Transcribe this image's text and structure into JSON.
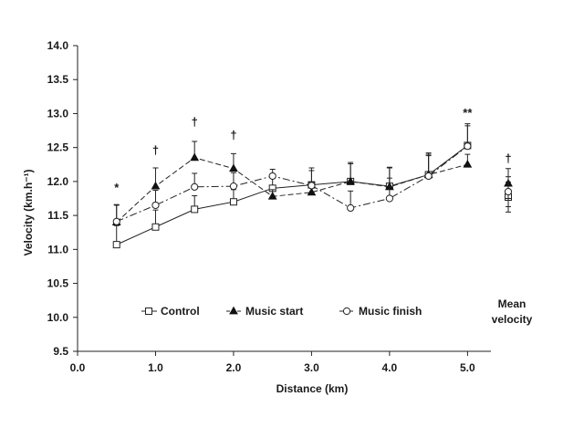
{
  "chart_data": {
    "type": "line",
    "xlabel": "Distance (km)",
    "ylabel": "Velocity (km.h⁻¹)",
    "xlim": [
      0,
      5.3
    ],
    "ylim": [
      9.5,
      14.0
    ],
    "xticks": [
      0,
      1,
      2,
      3,
      4,
      5
    ],
    "xtick_labels": [
      "0.0",
      "1.0",
      "2.0",
      "3.0",
      "4.0",
      "5.0"
    ],
    "yticks": [
      9.5,
      10.0,
      10.5,
      11.0,
      11.5,
      12.0,
      12.5,
      13.0,
      13.5,
      14.0
    ],
    "ytick_labels": [
      "9.5",
      "10.0",
      "10.5",
      "11.0",
      "11.5",
      "12.0",
      "12.5",
      "13.0",
      "13.5",
      "14.0"
    ],
    "grid": false,
    "legend_position": "bottom-center",
    "x": [
      0.5,
      1.0,
      1.5,
      2.0,
      2.5,
      3.0,
      3.5,
      4.0,
      4.5,
      5.0
    ],
    "series": [
      {
        "name": "Control",
        "marker": "open-square",
        "dash": "solid",
        "values": [
          11.07,
          11.33,
          11.59,
          11.7,
          11.9,
          11.95,
          12.0,
          11.93,
          12.1,
          12.53
        ],
        "errors": [
          0.28,
          0.25,
          0.2,
          0.18,
          0.15,
          0.25,
          0.28,
          0.28,
          0.32,
          0.32
        ]
      },
      {
        "name": "Music start",
        "marker": "filled-triangle",
        "dash": "dashed",
        "values": [
          11.4,
          11.93,
          12.35,
          12.19,
          11.78,
          11.84,
          12.0,
          11.92,
          12.1,
          12.25
        ],
        "errors": [
          0.25,
          0.27,
          0.24,
          0.22,
          0.1,
          0.15,
          0.26,
          0.28,
          0.3,
          0.15
        ]
      },
      {
        "name": "Music finish",
        "marker": "open-circle",
        "dash": "dash-dot",
        "values": [
          11.41,
          11.65,
          11.92,
          11.93,
          12.08,
          11.94,
          11.61,
          11.75,
          12.08,
          12.52
        ],
        "errors": [
          0.25,
          0.22,
          0.2,
          0.2,
          0.1,
          0.22,
          0.25,
          0.3,
          0.3,
          0.3
        ]
      }
    ],
    "mean_velocity": {
      "label_line1": "Mean",
      "label_line2": "velocity",
      "values": [
        {
          "series": "Control",
          "value": 11.77,
          "error": 0.22
        },
        {
          "series": "Music start",
          "value": 11.97,
          "error": 0.22
        },
        {
          "series": "Music finish",
          "value": 11.85,
          "error": 0.22
        }
      ],
      "annotation": "†"
    },
    "annotations": [
      {
        "x": 0.5,
        "y": 11.85,
        "text": "*"
      },
      {
        "x": 1.0,
        "y": 12.4,
        "text": "†"
      },
      {
        "x": 1.5,
        "y": 12.82,
        "text": "†"
      },
      {
        "x": 2.0,
        "y": 12.62,
        "text": "†"
      },
      {
        "x": 5.0,
        "y": 12.95,
        "text": "**"
      }
    ]
  }
}
